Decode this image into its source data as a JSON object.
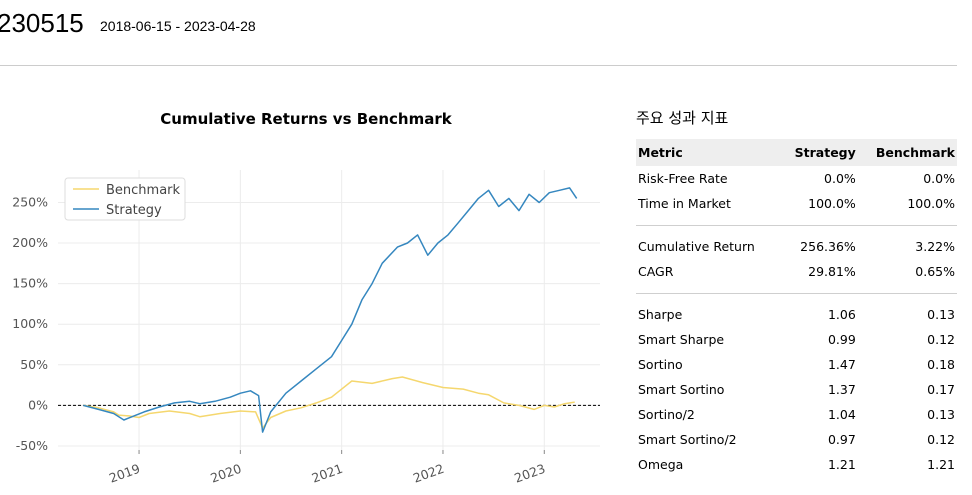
{
  "header": {
    "title": "230515",
    "date_range": "2018-06-15 - 2023-04-28"
  },
  "chart_data": {
    "type": "line",
    "title": "Cumulative Returns vs Benchmark",
    "xlabel": "",
    "ylabel": "",
    "x_tick_labels": [
      "2019",
      "2020",
      "2021",
      "2022",
      "2023"
    ],
    "y_tick_labels": [
      "250%",
      "200%",
      "150%",
      "100%",
      "50%",
      "0%",
      "-50%"
    ],
    "y_ticks": [
      250,
      200,
      150,
      100,
      50,
      0,
      -50
    ],
    "ylim": [
      -55,
      290
    ],
    "xlim": [
      2018.2,
      2023.55
    ],
    "grid": true,
    "zero_line": "dashed",
    "legend_position": "top-left",
    "colors": {
      "Benchmark": "#f5d76e",
      "Strategy": "#3587bf"
    },
    "series": [
      {
        "name": "Benchmark",
        "x": [
          2018.45,
          2018.6,
          2018.75,
          2018.8,
          2018.9,
          2019.0,
          2019.1,
          2019.3,
          2019.5,
          2019.6,
          2019.8,
          2020.0,
          2020.15,
          2020.22,
          2020.3,
          2020.45,
          2020.6,
          2020.75,
          2020.9,
          2021.0,
          2021.1,
          2021.3,
          2021.5,
          2021.6,
          2021.8,
          2022.0,
          2022.2,
          2022.35,
          2022.45,
          2022.6,
          2022.75,
          2022.9,
          2023.0,
          2023.1,
          2023.2,
          2023.3
        ],
        "values": [
          0,
          -3,
          -8,
          -12,
          -13,
          -15,
          -10,
          -7,
          -10,
          -14,
          -10,
          -7,
          -8,
          -28,
          -15,
          -7,
          -3,
          3,
          10,
          20,
          30,
          27,
          33,
          35,
          28,
          22,
          20,
          15,
          13,
          3,
          0,
          -5,
          0,
          -2,
          2,
          4
        ]
      },
      {
        "name": "Strategy",
        "x": [
          2018.45,
          2018.6,
          2018.75,
          2018.85,
          2018.95,
          2019.05,
          2019.2,
          2019.35,
          2019.5,
          2019.6,
          2019.75,
          2019.9,
          2020.0,
          2020.1,
          2020.18,
          2020.22,
          2020.3,
          2020.45,
          2020.6,
          2020.75,
          2020.9,
          2021.0,
          2021.1,
          2021.2,
          2021.3,
          2021.4,
          2021.55,
          2021.65,
          2021.75,
          2021.85,
          2021.95,
          2022.05,
          2022.15,
          2022.25,
          2022.35,
          2022.45,
          2022.55,
          2022.65,
          2022.75,
          2022.85,
          2022.95,
          2023.05,
          2023.15,
          2023.25,
          2023.32
        ],
        "values": [
          0,
          -5,
          -10,
          -18,
          -13,
          -8,
          -2,
          3,
          5,
          2,
          5,
          10,
          15,
          18,
          12,
          -33,
          -8,
          15,
          30,
          45,
          60,
          80,
          100,
          130,
          150,
          175,
          195,
          200,
          210,
          185,
          200,
          210,
          225,
          240,
          255,
          265,
          245,
          255,
          240,
          260,
          250,
          262,
          265,
          268,
          255
        ]
      }
    ]
  },
  "metrics": {
    "title": "주요 성과 지표",
    "columns": [
      "Metric",
      "Strategy",
      "Benchmark"
    ],
    "groups": [
      [
        [
          "Risk-Free Rate",
          "0.0%",
          "0.0%"
        ],
        [
          "Time in Market",
          "100.0%",
          "100.0%"
        ]
      ],
      [
        [
          "Cumulative Return",
          "256.36%",
          "3.22%"
        ],
        [
          "CAGR",
          "29.81%",
          "0.65%"
        ]
      ],
      [
        [
          "Sharpe",
          "1.06",
          "0.13"
        ],
        [
          "Smart Sharpe",
          "0.99",
          "0.12"
        ],
        [
          "Sortino",
          "1.47",
          "0.18"
        ],
        [
          "Smart Sortino",
          "1.37",
          "0.17"
        ],
        [
          "Sortino/2",
          "1.04",
          "0.13"
        ],
        [
          "Smart Sortino/2",
          "0.97",
          "0.12"
        ],
        [
          "Omega",
          "1.21",
          "1.21"
        ]
      ]
    ]
  }
}
